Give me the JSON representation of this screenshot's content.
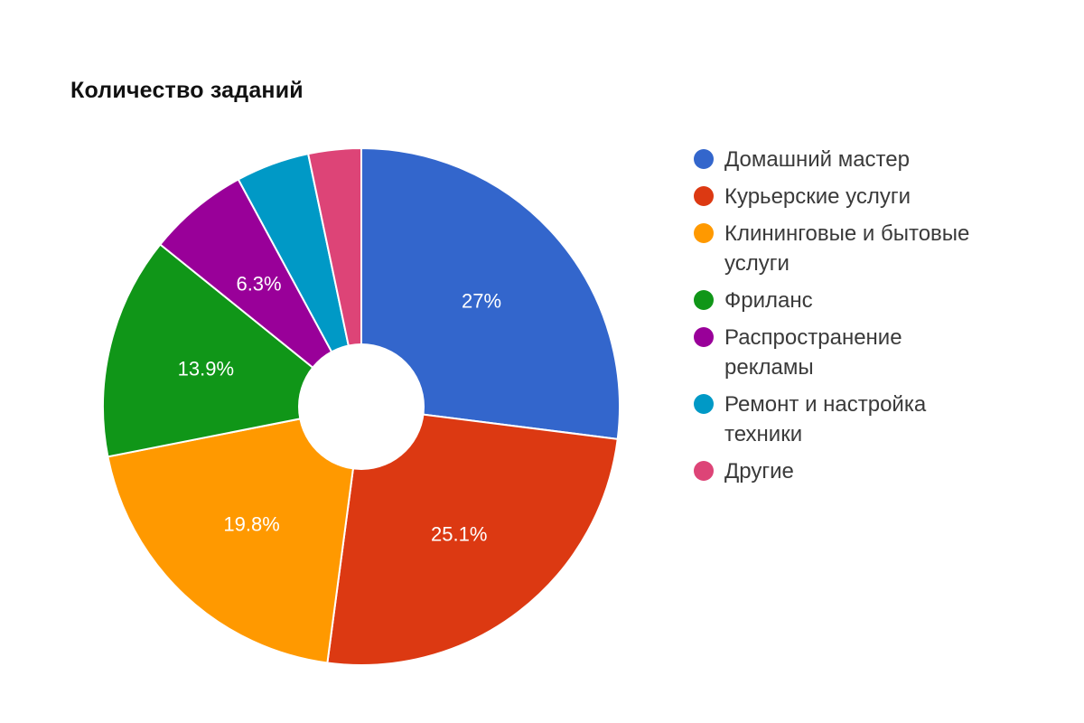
{
  "chart_data": {
    "type": "pie",
    "variant": "donut",
    "title": "Количество заданий",
    "categories": [
      "Домашний мастер",
      "Курьерские услуги",
      "Клининговые и бытовые услуги",
      "Фриланс",
      "Распространение рекламы",
      "Ремонт и настройка техники",
      "Другие"
    ],
    "values": [
      27.0,
      25.1,
      19.8,
      13.9,
      6.3,
      4.6,
      3.3
    ],
    "labels": [
      "27%",
      "25.1%",
      "19.8%",
      "13.9%",
      "6.3%",
      "",
      ""
    ],
    "estimated_values": {
      "Ремонт и настройка техники": 4.6,
      "Другие": 3.3
    },
    "colors": [
      "#3366cc",
      "#dc3912",
      "#ff9900",
      "#109618",
      "#990099",
      "#0099c6",
      "#dd4477"
    ],
    "legend_position": "right",
    "start_angle_deg": 0,
    "direction": "clockwise"
  },
  "title": "Количество заданий",
  "legend": [
    {
      "label": "Домашний мастер",
      "color": "#3366cc"
    },
    {
      "label": "Курьерские услуги",
      "color": "#dc3912"
    },
    {
      "label": "Клининговые и бытовые услуги",
      "color": "#ff9900"
    },
    {
      "label": "Фриланс",
      "color": "#109618"
    },
    {
      "label": "Распространение рекламы",
      "color": "#990099"
    },
    {
      "label": "Ремонт и настройка техники",
      "color": "#0099c6"
    },
    {
      "label": "Другие",
      "color": "#dd4477"
    }
  ]
}
